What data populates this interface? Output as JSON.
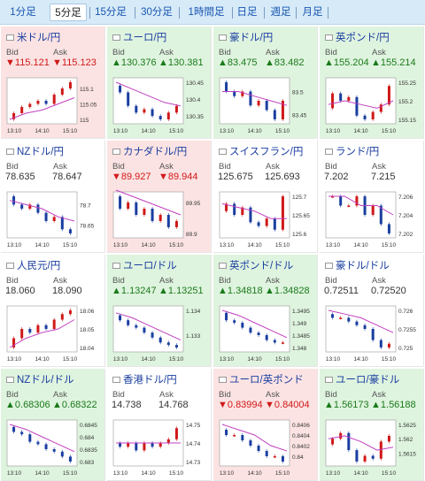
{
  "timeframes": [
    {
      "label": "1分足",
      "active": false
    },
    {
      "label": "5分足",
      "active": true
    },
    {
      "label": "15分足",
      "active": false
    },
    {
      "label": "30分足",
      "active": false
    },
    {
      "label": "1時間足",
      "active": false
    },
    {
      "label": "日足",
      "active": false
    },
    {
      "label": "週足",
      "active": false
    },
    {
      "label": "月足",
      "active": false
    }
  ],
  "labels": {
    "bid": "Bid",
    "ask": "Ask"
  },
  "colors": {
    "up": "#1a7a1a",
    "down": "#d01818",
    "candle_up": "#d01818",
    "candle_down": "#1a3ea0",
    "ma": "#c040c0"
  },
  "cards": [
    {
      "title": "米ドル/円",
      "trend": "down",
      "bid": "115.121",
      "ask": "115.123",
      "xt": [
        "13:10",
        "14:10",
        "15:10"
      ],
      "yt": [
        "115.1",
        "115.05",
        "115"
      ],
      "pts": [
        115.0,
        115.02,
        115.04,
        115.05,
        115.06,
        115.05,
        115.08,
        115.1,
        115.12
      ],
      "ma": [
        115.0,
        115.02,
        115.03,
        115.05,
        115.07
      ]
    },
    {
      "title": "ユーロ/円",
      "trend": "up",
      "bid": "130.376",
      "ask": "130.381",
      "xt": [
        "13:10",
        "14:10",
        "15:10"
      ],
      "yt": [
        "130.45",
        "130.4",
        "130.35"
      ],
      "pts": [
        130.44,
        130.42,
        130.38,
        130.36,
        130.37,
        130.35,
        130.34,
        130.36,
        130.38
      ],
      "ma": [
        130.45,
        130.43,
        130.41,
        130.39,
        130.38
      ]
    },
    {
      "title": "豪ドル/円",
      "trend": "up",
      "bid": "83.475",
      "ask": "83.482",
      "xt": [
        "13:10",
        "14:10",
        "15:10"
      ],
      "yt": [
        "83.5",
        "83.45"
      ],
      "pts": [
        83.52,
        83.5,
        83.49,
        83.5,
        83.47,
        83.48,
        83.46,
        83.44,
        83.48
      ],
      "ma": [
        83.5,
        83.5,
        83.49,
        83.48,
        83.47
      ]
    },
    {
      "title": "英ポンド/円",
      "trend": "up",
      "bid": "155.204",
      "ask": "155.214",
      "xt": [
        "13:10",
        "14:10",
        "15:10"
      ],
      "yt": [
        "155.25",
        "155.2",
        "155.15"
      ],
      "pts": [
        155.18,
        155.22,
        155.2,
        155.21,
        155.16,
        155.15,
        155.17,
        155.19,
        155.24
      ],
      "ma": [
        155.19,
        155.2,
        155.19,
        155.18,
        155.2
      ]
    },
    {
      "title": "NZドル/円",
      "trend": "flat",
      "bid": "78.635",
      "ask": "78.647",
      "xt": [
        "13:10",
        "14:10",
        "15:10"
      ],
      "yt": [
        "78.7",
        "78.65"
      ],
      "pts": [
        78.72,
        78.7,
        78.69,
        78.7,
        78.68,
        78.66,
        78.67,
        78.64,
        78.63
      ],
      "ma": [
        78.71,
        78.7,
        78.69,
        78.67,
        78.66
      ]
    },
    {
      "title": "カナダドル/円",
      "trend": "down",
      "bid": "89.927",
      "ask": "89.944",
      "xt": [
        "13:10",
        "14:10",
        "15:10"
      ],
      "yt": [
        "89.95",
        "89.9"
      ],
      "pts": [
        89.96,
        89.94,
        89.95,
        89.93,
        89.94,
        89.92,
        89.93,
        89.91,
        89.92
      ],
      "ma": [
        89.97,
        89.96,
        89.95,
        89.94,
        89.93
      ]
    },
    {
      "title": "スイスフラン/円",
      "trend": "flat",
      "bid": "125.675",
      "ask": "125.693",
      "xt": [
        "13:10",
        "14:10",
        "15:10"
      ],
      "yt": [
        "125.7",
        "125.65",
        "125.6"
      ],
      "pts": [
        125.66,
        125.68,
        125.65,
        125.67,
        125.63,
        125.62,
        125.64,
        125.61,
        125.7
      ],
      "ma": [
        125.68,
        125.67,
        125.66,
        125.64,
        125.64
      ]
    },
    {
      "title": "ランド/円",
      "trend": "flat",
      "bid": "7.202",
      "ask": "7.215",
      "xt": [
        "13:10",
        "14:10",
        "15:10"
      ],
      "yt": [
        "7.206",
        "7.204",
        "7.202"
      ],
      "pts": [
        7.206,
        7.206,
        7.205,
        7.205,
        7.206,
        7.204,
        7.205,
        7.203,
        7.202
      ],
      "ma": [
        7.206,
        7.206,
        7.205,
        7.205,
        7.204
      ]
    },
    {
      "title": "人民元/円",
      "trend": "flat",
      "bid": "18.060",
      "ask": "18.090",
      "xt": [
        "13:10",
        "14:10",
        "15:10"
      ],
      "yt": [
        "18.06",
        "18.05",
        "18.04"
      ],
      "pts": [
        18.04,
        18.045,
        18.05,
        18.048,
        18.052,
        18.05,
        18.055,
        18.058,
        18.06
      ],
      "ma": [
        18.04,
        18.045,
        18.048,
        18.05,
        18.055
      ]
    },
    {
      "title": "ユーロ/ドル",
      "trend": "up",
      "bid": "1.13247",
      "ask": "1.13251",
      "xt": [
        "13:10",
        "14:10",
        "15:10"
      ],
      "yt": [
        "1.134",
        "1.133"
      ],
      "pts": [
        1.1338,
        1.1336,
        1.1334,
        1.1333,
        1.1331,
        1.1329,
        1.1327,
        1.1326,
        1.1325
      ],
      "ma": [
        1.1339,
        1.1337,
        1.1334,
        1.1331,
        1.1328
      ]
    },
    {
      "title": "英ポンド/ドル",
      "trend": "up",
      "bid": "1.34818",
      "ask": "1.34828",
      "xt": [
        "13:10",
        "14:10",
        "15:10"
      ],
      "yt": [
        "1.3495",
        "1.349",
        "1.3485",
        "1.348"
      ],
      "pts": [
        1.3494,
        1.3491,
        1.349,
        1.3488,
        1.3486,
        1.3485,
        1.3483,
        1.3482,
        1.3482
      ],
      "ma": [
        1.3495,
        1.3493,
        1.349,
        1.3487,
        1.3484
      ]
    },
    {
      "title": "豪ドル/ドル",
      "trend": "flat",
      "bid": "0.72511",
      "ask": "0.72520",
      "xt": [
        "13:10",
        "14:10",
        "15:10"
      ],
      "yt": [
        "0.726",
        "0.7255",
        "0.725"
      ],
      "pts": [
        0.7259,
        0.7258,
        0.7258,
        0.7257,
        0.7256,
        0.7255,
        0.7252,
        0.725,
        0.7251
      ],
      "ma": [
        0.726,
        0.7259,
        0.7258,
        0.7256,
        0.7254
      ]
    },
    {
      "title": "NZドル/ドル",
      "trend": "up",
      "bid": "0.68306",
      "ask": "0.68322",
      "xt": [
        "13:10",
        "14:10",
        "15:10"
      ],
      "yt": [
        "0.6845",
        "0.684",
        "0.6835",
        "0.683"
      ],
      "pts": [
        0.6844,
        0.6842,
        0.6841,
        0.6838,
        0.6837,
        0.6835,
        0.6834,
        0.6832,
        0.683
      ],
      "ma": [
        0.6845,
        0.6843,
        0.684,
        0.6837,
        0.6834
      ]
    },
    {
      "title": "香港ドル/円",
      "trend": "flat",
      "bid": "14.738",
      "ask": "14.768",
      "xt": [
        "13:10",
        "14:10",
        "15:10"
      ],
      "yt": [
        "14.75",
        "14.74",
        "14.73"
      ],
      "pts": [
        14.74,
        14.738,
        14.74,
        14.736,
        14.74,
        14.738,
        14.74,
        14.742,
        14.748
      ],
      "ma": [
        14.74,
        14.74,
        14.74,
        14.74,
        14.74
      ]
    },
    {
      "title": "ユーロ/英ポンド",
      "trend": "down",
      "bid": "0.83994",
      "ask": "0.84004",
      "xt": [
        "13:10",
        "14:10",
        "15:10"
      ],
      "yt": [
        "0.8406",
        "0.8404",
        "0.8402",
        "0.84"
      ],
      "pts": [
        0.8405,
        0.8404,
        0.8404,
        0.8403,
        0.8402,
        0.8401,
        0.84,
        0.84,
        0.8399
      ],
      "ma": [
        0.8406,
        0.8405,
        0.8404,
        0.8402,
        0.8401
      ]
    },
    {
      "title": "ユーロ/豪ドル",
      "trend": "up",
      "bid": "1.56173",
      "ask": "1.56188",
      "xt": [
        "13:10",
        "14:10",
        "15:10"
      ],
      "yt": [
        "1.5625",
        "1.562",
        "1.5615"
      ],
      "pts": [
        1.5618,
        1.562,
        1.5622,
        1.5616,
        1.5612,
        1.5614,
        1.5613,
        1.5619,
        1.5621
      ],
      "ma": [
        1.562,
        1.5621,
        1.5619,
        1.5616,
        1.5617
      ]
    }
  ]
}
